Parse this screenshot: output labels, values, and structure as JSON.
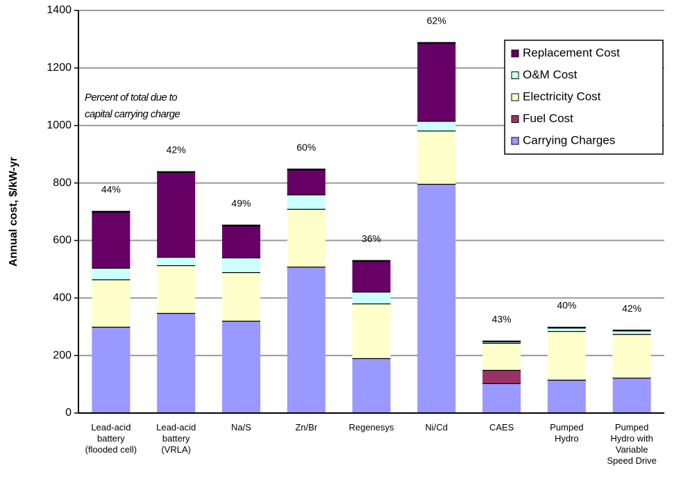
{
  "chart_data": {
    "type": "stacked_bar",
    "y_label": "Annual cost, $/kW-yr",
    "annotation": [
      "Percent of total due to",
      "capital carrying charge"
    ],
    "categories": [
      "Lead-acid\nbattery\n(flooded cell)",
      "Lead-acid\nbattery\n(VRLA)",
      "Na/S",
      "Zn/Br",
      "Regenesys",
      "Ni/Cd",
      "CAES",
      "Pumped\nHydro",
      "Pumped\nHydro with\nVariable\nSpeed Drive"
    ],
    "series": [
      {
        "name": "Carrying Charges",
        "color": "#9999ff",
        "values": [
          300,
          348,
          321,
          509,
          191,
          797,
          104,
          116,
          123
        ]
      },
      {
        "name": "Fuel Cost",
        "color": "#993366",
        "values": [
          0,
          0,
          0,
          0,
          0,
          0,
          46,
          0,
          0
        ]
      },
      {
        "name": "Electricity Cost",
        "color": "#ffffcc",
        "values": [
          165,
          166,
          169,
          201,
          190,
          185,
          94,
          169,
          152
        ]
      },
      {
        "name": "O&M Cost",
        "color": "#ccffff",
        "values": [
          40,
          29,
          51,
          50,
          41,
          34,
          5,
          12,
          12
        ]
      },
      {
        "name": "Replacement Cost",
        "color": "#660066",
        "values": [
          195,
          295,
          111,
          87,
          107,
          271,
          0,
          0,
          0
        ]
      }
    ],
    "percent_labels": [
      "44%",
      "42%",
      "49%",
      "60%",
      "36%",
      "62%",
      "43%",
      "40%",
      "42%"
    ],
    "ylim": [
      0,
      1400
    ],
    "yticks": [
      0,
      200,
      400,
      600,
      800,
      1000,
      1200,
      1400
    ],
    "grid": true,
    "legend": "upper right"
  }
}
